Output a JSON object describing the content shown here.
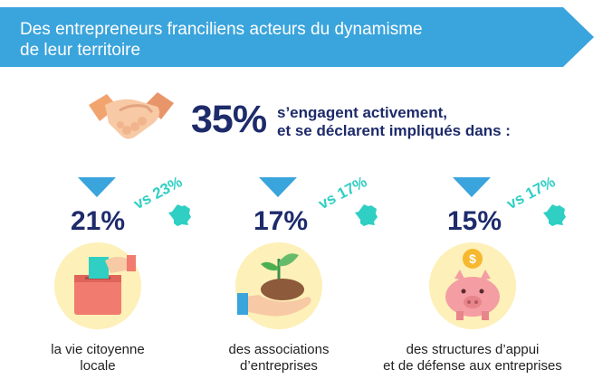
{
  "banner": {
    "title_line1": "Des entrepreneurs franciliens acteurs du dynamisme",
    "title_line2": "de leur territoire",
    "color": "#3aa4dc"
  },
  "headline": {
    "percent": "35%",
    "line1": "s’engagent activement,",
    "line2": "et se déclarent impliqués dans :",
    "icon": "handshake-icon"
  },
  "items": [
    {
      "percent": "21%",
      "comparison": "vs 23%",
      "label_line1": "la vie citoyenne",
      "label_line2": "locale",
      "icon": "ballot-box-icon"
    },
    {
      "percent": "17%",
      "comparison": "vs 17%",
      "label_line1": "des associations",
      "label_line2": "d’entreprises",
      "icon": "plant-in-hand-icon"
    },
    {
      "percent": "15%",
      "comparison": "vs 17%",
      "label_line1": "des structures d’appui",
      "label_line2": "et de défense aux entreprises",
      "icon": "piggy-bank-icon"
    }
  ],
  "colors": {
    "navy": "#1e2b6b",
    "teal": "#2fcfc4",
    "arrow_blue": "#3aa4dc",
    "circle_yellow": "#fdf0b8"
  }
}
